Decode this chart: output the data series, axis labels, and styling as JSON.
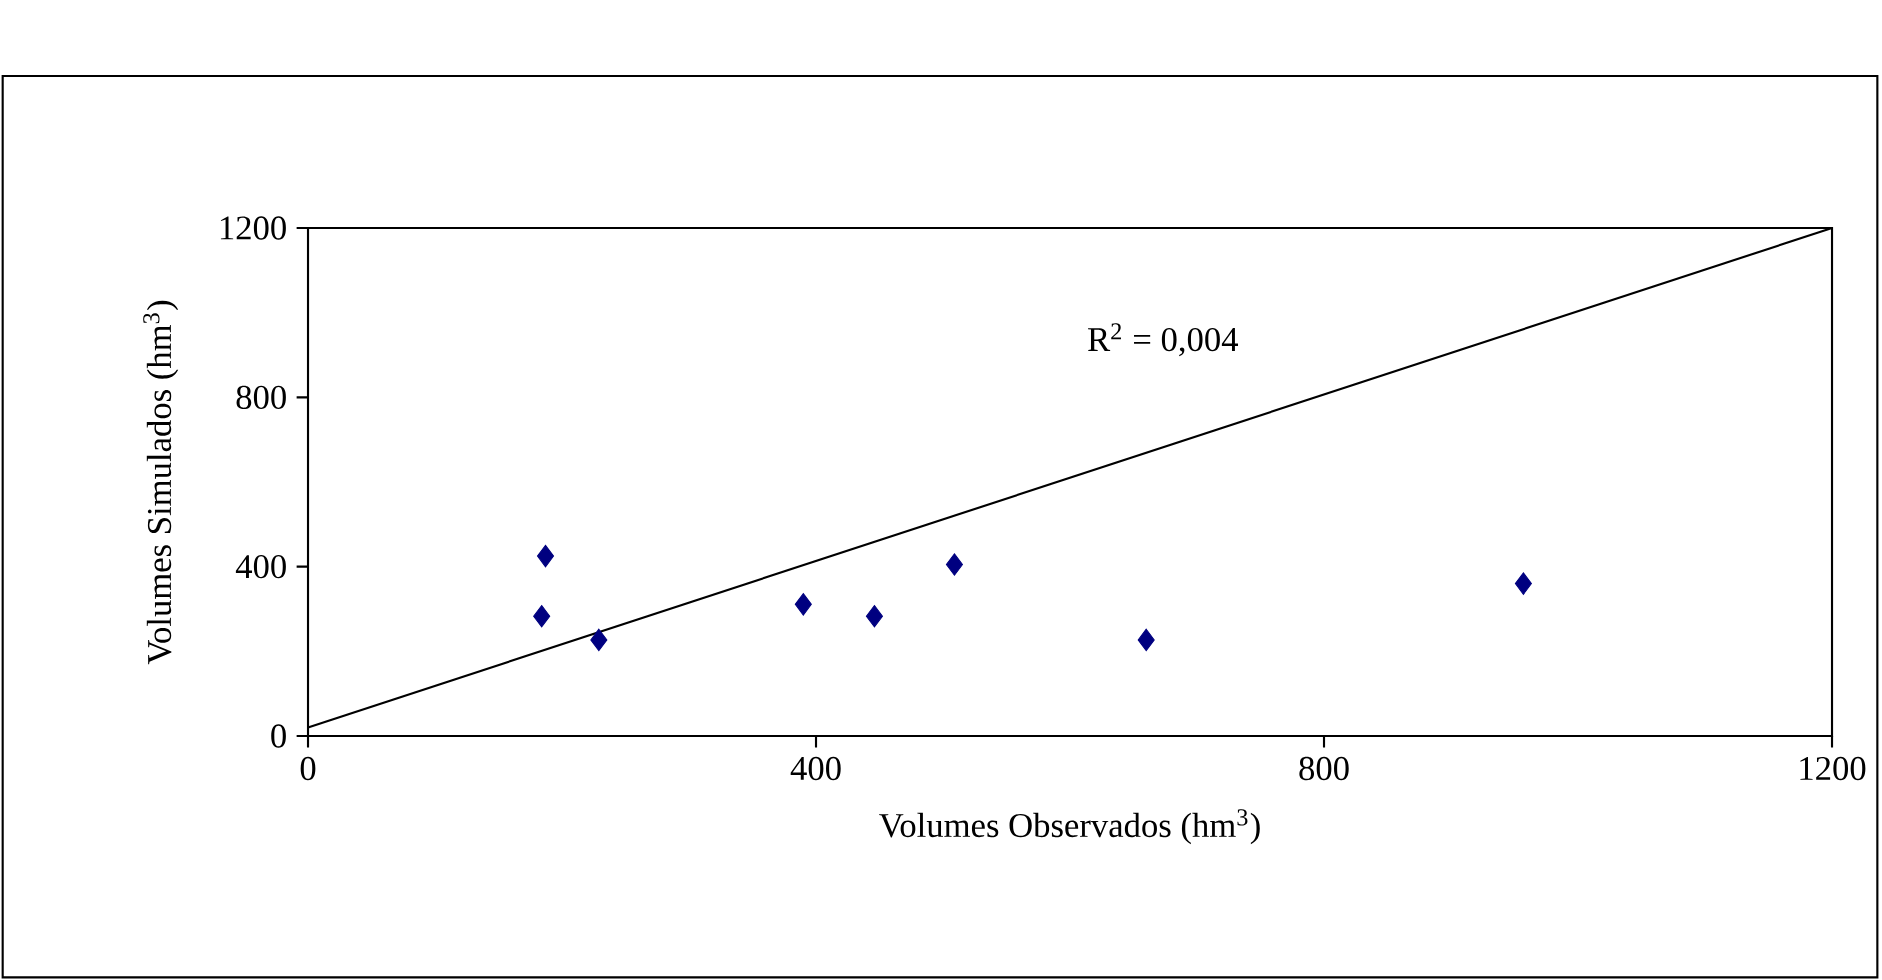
{
  "chart_data": {
    "type": "scatter",
    "xlabel": "Volumes Observados  (hm$^{3}$)",
    "ylabel": "Volumes Simulados  (hm$^{3}$)",
    "annotations": [
      "R$^{2}$ = 0,004"
    ],
    "xlim": [
      0,
      1200
    ],
    "xticks": [
      0,
      400,
      800,
      1200
    ],
    "ylim": [
      0,
      1200
    ],
    "yticks": [
      0,
      400,
      800,
      1200
    ],
    "grid": false,
    "series": [
      {
        "type": "scatter",
        "marker": "diamond",
        "color": "#000080",
        "x": [
          187,
          184,
          229,
          390,
          446,
          509,
          660,
          957
        ],
        "values": [
          425,
          283,
          227,
          311,
          283,
          405,
          227,
          360
        ]
      },
      {
        "type": "line",
        "marker": "none",
        "line_style": "solid",
        "color": "#000000",
        "x": [
          0,
          1200
        ],
        "values": [
          20,
          1200
        ]
      }
    ]
  }
}
